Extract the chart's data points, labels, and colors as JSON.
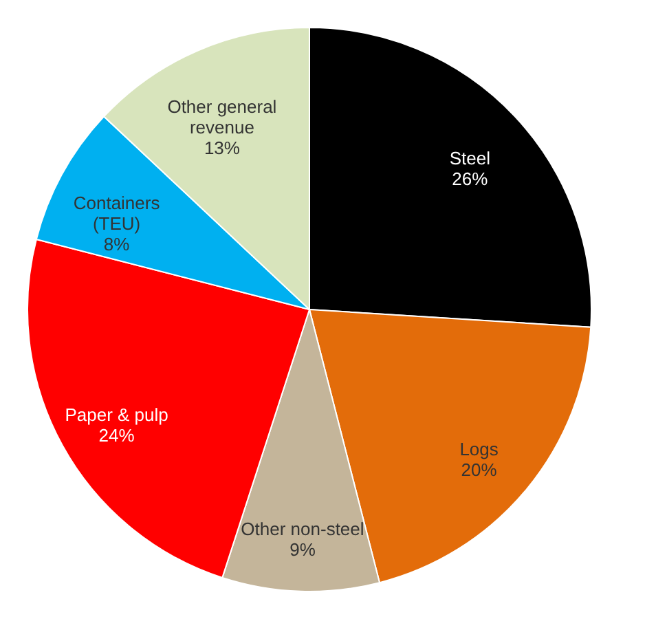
{
  "chart_data": {
    "type": "pie",
    "categories": [
      "Steel",
      "Logs",
      "Other non-steel",
      "Paper & pulp",
      "Containers (TEU)",
      "Other general revenue"
    ],
    "values": [
      26,
      20,
      9,
      24,
      8,
      13
    ],
    "value_labels": [
      "26%",
      "20%",
      "9%",
      "24%",
      "8%",
      "13%"
    ],
    "colors": [
      "#000000",
      "#e36c0a",
      "#c4b59a",
      "#ff0000",
      "#00b0f0",
      "#d8e4bc"
    ],
    "legend": false
  }
}
